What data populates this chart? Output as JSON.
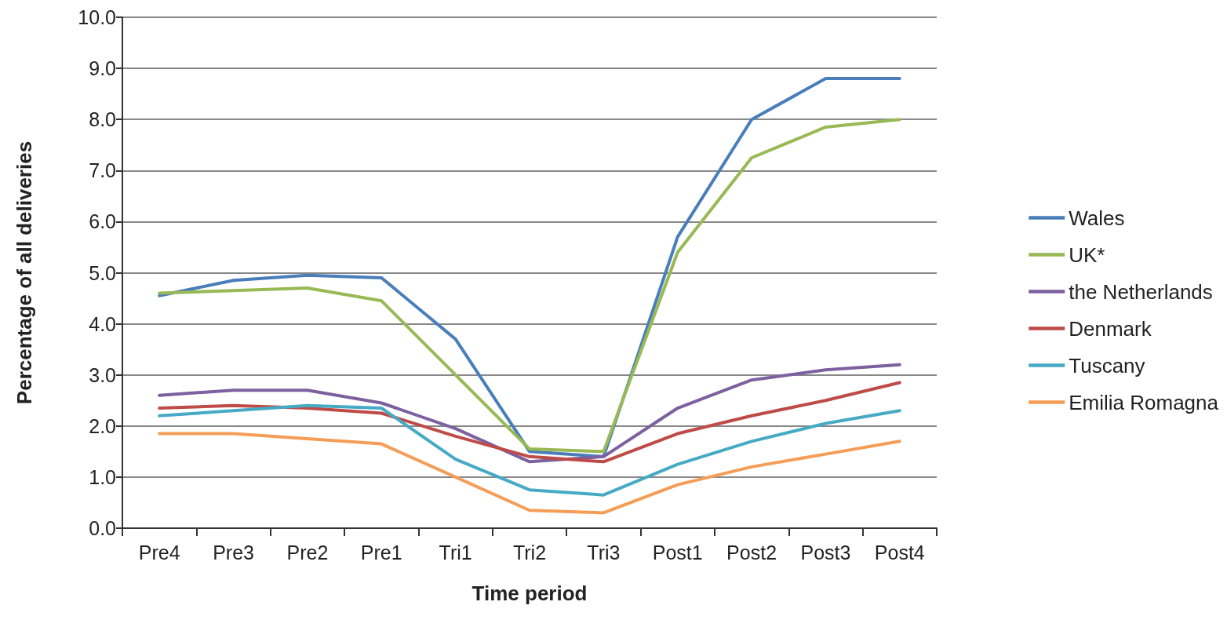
{
  "chart_data": {
    "type": "line",
    "xlabel": "Time period",
    "ylabel": "Percentage of all deliveries",
    "categories": [
      "Pre4",
      "Pre3",
      "Pre2",
      "Pre1",
      "Tri1",
      "Tri2",
      "Tri3",
      "Post1",
      "Post2",
      "Post3",
      "Post4"
    ],
    "series": [
      {
        "name": "Wales",
        "color": "#4a7ebb",
        "values": [
          4.55,
          4.85,
          4.95,
          4.9,
          3.7,
          1.5,
          1.4,
          5.7,
          8.0,
          8.8,
          8.8
        ]
      },
      {
        "name": "UK*",
        "color": "#98b954",
        "values": [
          4.6,
          4.65,
          4.7,
          4.45,
          3.0,
          1.55,
          1.5,
          5.4,
          7.25,
          7.85,
          8.0
        ]
      },
      {
        "name": "the Netherlands",
        "color": "#7d60a0",
        "values": [
          2.6,
          2.7,
          2.7,
          2.45,
          1.95,
          1.3,
          1.4,
          2.35,
          2.9,
          3.1,
          3.2
        ]
      },
      {
        "name": "Denmark",
        "color": "#be4b48",
        "values": [
          2.35,
          2.4,
          2.35,
          2.25,
          1.8,
          1.4,
          1.3,
          1.85,
          2.2,
          2.5,
          2.85
        ]
      },
      {
        "name": "Tuscany",
        "color": "#46aac5",
        "values": [
          2.2,
          2.3,
          2.4,
          2.35,
          1.35,
          0.75,
          0.65,
          1.25,
          1.7,
          2.05,
          2.3
        ]
      },
      {
        "name": "Emilia Romagna",
        "color": "#f59d56",
        "values": [
          1.85,
          1.85,
          1.75,
          1.65,
          1.0,
          0.35,
          0.3,
          0.85,
          1.2,
          1.45,
          1.7
        ]
      }
    ],
    "ylim": [
      0,
      10
    ],
    "yticks": [
      {
        "value": 0,
        "label": "0.0"
      },
      {
        "value": 1,
        "label": "1.0"
      },
      {
        "value": 2,
        "label": "2.0"
      },
      {
        "value": 3,
        "label": "3.0"
      },
      {
        "value": 4,
        "label": "4.0"
      },
      {
        "value": 5,
        "label": "5.0"
      },
      {
        "value": 6,
        "label": "6.0"
      },
      {
        "value": 7,
        "label": "7.0"
      },
      {
        "value": 8,
        "label": "8.0"
      },
      {
        "value": 9,
        "label": "9.0"
      },
      {
        "value": 10,
        "label": "10.0"
      }
    ],
    "grid": "y",
    "legend": "right",
    "marker": "none",
    "line_style": "solid"
  }
}
